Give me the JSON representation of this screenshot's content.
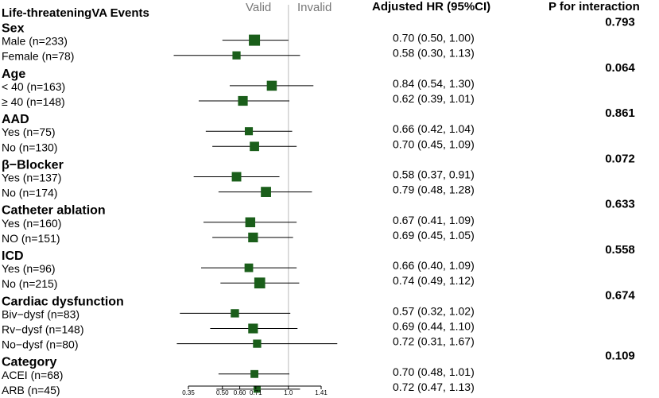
{
  "header": {
    "title": "Life-threateningVA Events",
    "hr_column": "Adjusted HR (95%CI)",
    "p_column": "P for interaction",
    "valid_label": "Valid",
    "invalid_label": "Invalid"
  },
  "chart_data": {
    "type": "forest",
    "xscale": "log",
    "xlim": [
      0.3,
      1.7
    ],
    "reference_line": 1.0,
    "x_ticks": [
      0.35,
      0.5,
      0.6,
      0.71,
      1.0,
      1.41
    ],
    "x_tick_labels": [
      "0.35",
      "0.50",
      "0.60",
      "0.71",
      "1.0",
      "1.41"
    ],
    "groups": [
      {
        "name": "Sex",
        "p": "0.793",
        "rows": [
          {
            "label": "Male (n=233)",
            "hr": 0.7,
            "lo": 0.5,
            "hi": 1.0,
            "text": "0.70 (0.50, 1.00)",
            "n": 233
          },
          {
            "label": "Female (n=78)",
            "hr": 0.58,
            "lo": 0.3,
            "hi": 1.13,
            "text": "0.58 (0.30, 1.13)",
            "n": 78
          }
        ]
      },
      {
        "name": "Age",
        "p": "0.064",
        "rows": [
          {
            "label": "< 40 (n=163)",
            "hr": 0.84,
            "lo": 0.54,
            "hi": 1.3,
            "text": "0.84 (0.54, 1.30)",
            "n": 163
          },
          {
            "label": "≥ 40 (n=148)",
            "hr": 0.62,
            "lo": 0.39,
            "hi": 1.01,
            "text": "0.62 (0.39, 1.01)",
            "n": 148
          }
        ]
      },
      {
        "name": "AAD",
        "p": "0.861",
        "rows": [
          {
            "label": "Yes (n=75)",
            "hr": 0.66,
            "lo": 0.42,
            "hi": 1.04,
            "text": "0.66 (0.42, 1.04)",
            "n": 75
          },
          {
            "label": "No (n=130)",
            "hr": 0.7,
            "lo": 0.45,
            "hi": 1.09,
            "text": "0.70 (0.45, 1.09)",
            "n": 130
          }
        ]
      },
      {
        "name": "β−Blocker",
        "p": "0.072",
        "rows": [
          {
            "label": "Yes (n=137)",
            "hr": 0.58,
            "lo": 0.37,
            "hi": 0.91,
            "text": "0.58 (0.37, 0.91)",
            "n": 137
          },
          {
            "label": "No (n=174)",
            "hr": 0.79,
            "lo": 0.48,
            "hi": 1.28,
            "text": "0.79 (0.48, 1.28)",
            "n": 174
          }
        ]
      },
      {
        "name": "Catheter ablation",
        "p": "0.633",
        "rows": [
          {
            "label": "Yes (n=160)",
            "hr": 0.67,
            "lo": 0.41,
            "hi": 1.09,
            "text": "0.67 (0.41, 1.09)",
            "n": 160
          },
          {
            "label": "NO (n=151)",
            "hr": 0.69,
            "lo": 0.45,
            "hi": 1.05,
            "text": "0.69 (0.45, 1.05)",
            "n": 151
          }
        ]
      },
      {
        "name": "ICD",
        "p": "0.558",
        "rows": [
          {
            "label": "Yes (n=96)",
            "hr": 0.66,
            "lo": 0.4,
            "hi": 1.09,
            "text": "0.66 (0.40, 1.09)",
            "n": 96
          },
          {
            "label": "No (n=215)",
            "hr": 0.74,
            "lo": 0.49,
            "hi": 1.12,
            "text": "0.74 (0.49, 1.12)",
            "n": 215
          }
        ]
      },
      {
        "name": "Cardiac dysfunction",
        "p": "0.674",
        "rows": [
          {
            "label": "Biv−dysf (n=83)",
            "hr": 0.57,
            "lo": 0.32,
            "hi": 1.02,
            "text": "0.57 (0.32, 1.02)",
            "n": 83
          },
          {
            "label": "Rv−dysf (n=148)",
            "hr": 0.69,
            "lo": 0.44,
            "hi": 1.1,
            "text": "0.69 (0.44, 1.10)",
            "n": 148
          },
          {
            "label": "No−dysf (n=80)",
            "hr": 0.72,
            "lo": 0.31,
            "hi": 1.67,
            "text": "0.72 (0.31, 1.67)",
            "n": 80
          }
        ]
      },
      {
        "name": "Category",
        "p": "0.109",
        "rows": [
          {
            "label": "ACEI (n=68)",
            "hr": 0.7,
            "lo": 0.48,
            "hi": 1.01,
            "text": "0.70 (0.48, 1.01)",
            "n": 68
          },
          {
            "label": "ARB (n=45)",
            "hr": 0.72,
            "lo": 0.47,
            "hi": 1.13,
            "text": "0.72 (0.47, 1.13)",
            "n": 45
          }
        ]
      }
    ],
    "colors": {
      "marker": "#1a5e1a",
      "ref_line": "#bbbbbb",
      "ci_line": "#000000"
    }
  }
}
